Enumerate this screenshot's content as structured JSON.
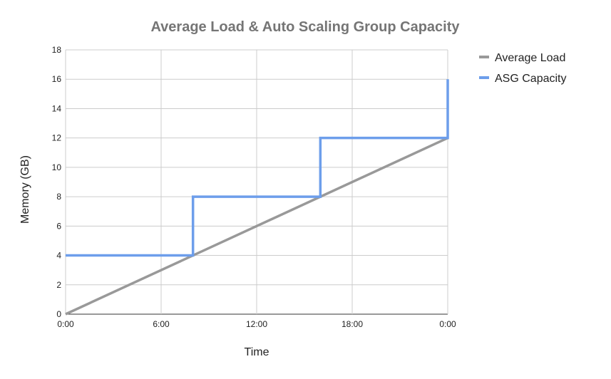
{
  "chart_data": {
    "type": "line",
    "title": "Average Load & Auto Scaling Group Capacity",
    "xlabel": "Time",
    "ylabel": "Memory (GB)",
    "xlim": [
      "0:00",
      "0:00 (+1 day)"
    ],
    "ylim": [
      0,
      18
    ],
    "x_ticks": [
      "0:00",
      "6:00",
      "12:00",
      "18:00",
      "0:00"
    ],
    "y_ticks": [
      "0",
      "2",
      "4",
      "6",
      "8",
      "10",
      "12",
      "14",
      "16",
      "18"
    ],
    "grid": true,
    "legend_position": "right",
    "series": [
      {
        "name": "Average Load",
        "color": "#999999",
        "points": [
          {
            "x": "0:00",
            "y": 0
          },
          {
            "x": "0:00 (+1 day)",
            "y": 12
          }
        ]
      },
      {
        "name": "ASG Capacity",
        "color": "#6d9eeb",
        "step": true,
        "points": [
          {
            "x": "0:00",
            "y": 4
          },
          {
            "x": "8:00",
            "y": 4
          },
          {
            "x": "8:00",
            "y": 8
          },
          {
            "x": "16:00",
            "y": 8
          },
          {
            "x": "16:00",
            "y": 12
          },
          {
            "x": "0:00 (+1 day)",
            "y": 12
          },
          {
            "x": "0:00 (+1 day)",
            "y": 16
          }
        ]
      }
    ]
  }
}
